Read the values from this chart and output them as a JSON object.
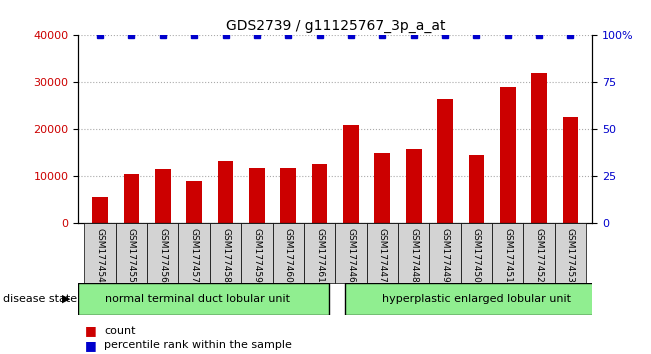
{
  "title": "GDS2739 / g11125767_3p_a_at",
  "samples": [
    "GSM177454",
    "GSM177455",
    "GSM177456",
    "GSM177457",
    "GSM177458",
    "GSM177459",
    "GSM177460",
    "GSM177461",
    "GSM177446",
    "GSM177447",
    "GSM177448",
    "GSM177449",
    "GSM177450",
    "GSM177451",
    "GSM177452",
    "GSM177453"
  ],
  "counts": [
    5500,
    10500,
    11500,
    9000,
    13200,
    11700,
    11700,
    12500,
    21000,
    15000,
    15800,
    26500,
    14500,
    29000,
    32000,
    22500
  ],
  "percentile": [
    100,
    100,
    100,
    100,
    100,
    100,
    100,
    100,
    100,
    100,
    100,
    100,
    100,
    100,
    100,
    100
  ],
  "bar_color": "#cc0000",
  "dot_color": "#0000cc",
  "ylim_left": [
    0,
    40000
  ],
  "ylim_right": [
    0,
    100
  ],
  "yticks_left": [
    0,
    10000,
    20000,
    30000,
    40000
  ],
  "yticks_right": [
    0,
    25,
    50,
    75,
    100
  ],
  "ytick_labels_left": [
    "0",
    "10000",
    "20000",
    "30000",
    "40000"
  ],
  "ytick_labels_right": [
    "0",
    "25",
    "50",
    "75",
    "100%"
  ],
  "group1_label": "normal terminal duct lobular unit",
  "group2_label": "hyperplastic enlarged lobular unit",
  "group1_count": 8,
  "group2_count": 8,
  "disease_state_label": "disease state",
  "legend_count_label": "count",
  "legend_pct_label": "percentile rank within the sample",
  "group1_color": "#90ee90",
  "group2_color": "#90ee90",
  "tick_label_color_left": "#cc0000",
  "tick_label_color_right": "#0000cc",
  "grid_color": "#aaaaaa",
  "xticklabel_bg": "#d3d3d3",
  "bar_width": 0.5
}
